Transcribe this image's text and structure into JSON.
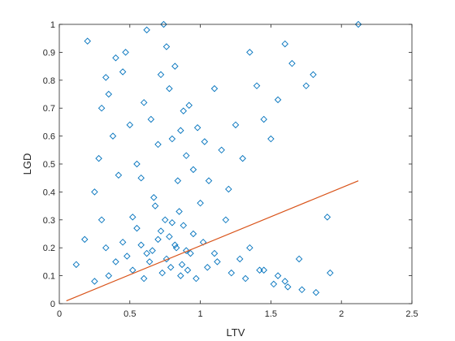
{
  "chart_data": {
    "type": "scatter",
    "xlabel": "LTV",
    "ylabel": "LGD",
    "xlim": [
      0,
      2.5
    ],
    "ylim": [
      0,
      1
    ],
    "x_ticks": [
      "0",
      "0.5",
      "1",
      "1.5",
      "2",
      "2.5"
    ],
    "y_ticks": [
      "0",
      "0.1",
      "0.2",
      "0.3",
      "0.4",
      "0.5",
      "0.6",
      "0.7",
      "0.8",
      "0.9",
      "1"
    ],
    "grid": false,
    "legend": "none",
    "colors": {
      "points": "#0072BD",
      "fit": "#D95319",
      "axes": "#262626"
    },
    "marker": "diamond-open",
    "fit_line": {
      "x": [
        0.05,
        2.12
      ],
      "y": [
        0.01,
        0.44
      ]
    },
    "series": [
      {
        "x": [
          0.12,
          0.18,
          0.2,
          0.25,
          0.28,
          0.3,
          0.33,
          0.35,
          0.38,
          0.4,
          0.42,
          0.45,
          0.47,
          0.5,
          0.52,
          0.55,
          0.58,
          0.6,
          0.62,
          0.65,
          0.67,
          0.7,
          0.72,
          0.74,
          0.76,
          0.78,
          0.8,
          0.82,
          0.84,
          0.86,
          0.88,
          0.9,
          0.92,
          0.95,
          0.98,
          1.0,
          1.03,
          1.06,
          1.1,
          1.15,
          1.2,
          1.25,
          1.3,
          1.35,
          1.4,
          1.45,
          1.5,
          1.55,
          1.6,
          1.65,
          1.7,
          1.75,
          1.8,
          1.9,
          2.12,
          0.3,
          0.33,
          0.45,
          0.55,
          0.62,
          0.68,
          0.72,
          0.75,
          0.78,
          0.8,
          0.82,
          0.85,
          0.88,
          0.9,
          0.95,
          1.02,
          1.1,
          1.18,
          1.28,
          1.35,
          1.45,
          1.55,
          1.6,
          0.4,
          0.48,
          0.58,
          0.66,
          0.7,
          0.76,
          0.83,
          0.87,
          0.93,
          1.05,
          1.12,
          1.22,
          1.32,
          1.42,
          1.52,
          1.62,
          1.72,
          1.82,
          1.92,
          0.25,
          0.35,
          0.52,
          0.6,
          0.64,
          0.73,
          0.79,
          0.86,
          0.91,
          0.97
        ],
        "y": [
          0.14,
          0.23,
          0.94,
          0.4,
          0.52,
          0.7,
          0.81,
          0.75,
          0.6,
          0.88,
          0.46,
          0.83,
          0.9,
          0.64,
          0.31,
          0.5,
          0.45,
          0.72,
          0.98,
          0.66,
          0.38,
          0.57,
          0.82,
          1.0,
          0.92,
          0.77,
          0.59,
          0.85,
          0.44,
          0.62,
          0.69,
          0.53,
          0.71,
          0.48,
          0.63,
          0.36,
          0.58,
          0.44,
          0.77,
          0.55,
          0.41,
          0.64,
          0.52,
          0.9,
          0.78,
          0.66,
          0.59,
          0.73,
          0.93,
          0.86,
          0.16,
          0.78,
          0.82,
          0.31,
          1.0,
          0.3,
          0.2,
          0.22,
          0.27,
          0.18,
          0.35,
          0.26,
          0.3,
          0.24,
          0.29,
          0.21,
          0.33,
          0.28,
          0.19,
          0.25,
          0.22,
          0.18,
          0.3,
          0.16,
          0.2,
          0.12,
          0.1,
          0.08,
          0.15,
          0.17,
          0.21,
          0.19,
          0.23,
          0.16,
          0.2,
          0.14,
          0.18,
          0.13,
          0.15,
          0.11,
          0.09,
          0.12,
          0.07,
          0.06,
          0.05,
          0.04,
          0.11,
          0.08,
          0.1,
          0.12,
          0.09,
          0.15,
          0.11,
          0.13,
          0.1,
          0.12,
          0.09
        ]
      }
    ]
  }
}
